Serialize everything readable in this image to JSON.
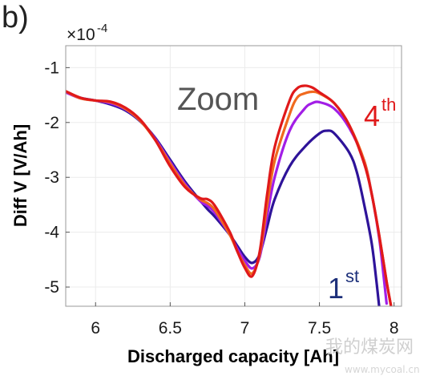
{
  "panel_label": "b)",
  "chart_data": {
    "type": "line",
    "title": "",
    "xlabel": "Discharged capacity [Ah]",
    "ylabel": "Diff V [V/Ah]",
    "y_exponent_label": "×10",
    "y_exponent_power": "-4",
    "xlim": [
      5.8,
      8.05
    ],
    "ylim": [
      -5.35,
      -0.6
    ],
    "x_ticks": [
      6,
      6.5,
      7,
      7.5,
      8
    ],
    "x_tick_labels": [
      "6",
      "6.5",
      "7",
      "7.5",
      "8"
    ],
    "y_ticks": [
      -1,
      -2,
      -3,
      -4,
      -5
    ],
    "y_tick_labels": [
      "-1",
      "-2",
      "-3",
      "-4",
      "-5"
    ],
    "grid": true,
    "annotation": "Zoom",
    "first_label": {
      "base": "1",
      "sup": "st",
      "color": "#1c2f7a"
    },
    "fourth_label": {
      "base": "4",
      "sup": "th",
      "color": "#e0191a"
    },
    "series": [
      {
        "color": "#2e1399",
        "points": [
          [
            5.8,
            -1.45
          ],
          [
            5.9,
            -1.55
          ],
          [
            6.0,
            -1.6
          ],
          [
            6.1,
            -1.67
          ],
          [
            6.2,
            -1.78
          ],
          [
            6.3,
            -1.98
          ],
          [
            6.4,
            -2.28
          ],
          [
            6.5,
            -2.68
          ],
          [
            6.6,
            -3.08
          ],
          [
            6.7,
            -3.42
          ],
          [
            6.75,
            -3.58
          ],
          [
            6.8,
            -3.72
          ],
          [
            6.9,
            -4.05
          ],
          [
            6.95,
            -4.25
          ],
          [
            7.0,
            -4.45
          ],
          [
            7.05,
            -4.56
          ],
          [
            7.1,
            -4.4
          ],
          [
            7.15,
            -3.9
          ],
          [
            7.2,
            -3.4
          ],
          [
            7.3,
            -2.8
          ],
          [
            7.4,
            -2.45
          ],
          [
            7.5,
            -2.2
          ],
          [
            7.55,
            -2.15
          ],
          [
            7.6,
            -2.2
          ],
          [
            7.7,
            -2.55
          ],
          [
            7.75,
            -2.9
          ],
          [
            7.8,
            -3.5
          ],
          [
            7.85,
            -4.2
          ],
          [
            7.88,
            -4.85
          ],
          [
            7.9,
            -5.35
          ]
        ]
      },
      {
        "color": "#a21ee6",
        "points": [
          [
            5.8,
            -1.45
          ],
          [
            5.9,
            -1.56
          ],
          [
            6.0,
            -1.6
          ],
          [
            6.1,
            -1.65
          ],
          [
            6.2,
            -1.76
          ],
          [
            6.3,
            -1.97
          ],
          [
            6.4,
            -2.3
          ],
          [
            6.5,
            -2.72
          ],
          [
            6.6,
            -3.12
          ],
          [
            6.7,
            -3.43
          ],
          [
            6.75,
            -3.52
          ],
          [
            6.8,
            -3.65
          ],
          [
            6.9,
            -4.05
          ],
          [
            6.95,
            -4.3
          ],
          [
            7.0,
            -4.52
          ],
          [
            7.05,
            -4.66
          ],
          [
            7.1,
            -4.45
          ],
          [
            7.15,
            -3.7
          ],
          [
            7.2,
            -3.0
          ],
          [
            7.3,
            -2.15
          ],
          [
            7.4,
            -1.75
          ],
          [
            7.45,
            -1.65
          ],
          [
            7.5,
            -1.63
          ],
          [
            7.6,
            -1.75
          ],
          [
            7.7,
            -2.1
          ],
          [
            7.8,
            -2.7
          ],
          [
            7.85,
            -3.3
          ],
          [
            7.9,
            -4.1
          ],
          [
            7.93,
            -4.8
          ],
          [
            7.95,
            -5.3
          ]
        ]
      },
      {
        "color": "#f06a1f",
        "points": [
          [
            5.8,
            -1.43
          ],
          [
            5.9,
            -1.56
          ],
          [
            6.0,
            -1.6
          ],
          [
            6.1,
            -1.63
          ],
          [
            6.2,
            -1.75
          ],
          [
            6.3,
            -1.97
          ],
          [
            6.4,
            -2.32
          ],
          [
            6.5,
            -2.75
          ],
          [
            6.6,
            -3.15
          ],
          [
            6.7,
            -3.4
          ],
          [
            6.75,
            -3.47
          ],
          [
            6.8,
            -3.6
          ],
          [
            6.9,
            -4.05
          ],
          [
            6.95,
            -4.35
          ],
          [
            7.0,
            -4.6
          ],
          [
            7.05,
            -4.75
          ],
          [
            7.1,
            -4.4
          ],
          [
            7.15,
            -3.5
          ],
          [
            7.2,
            -2.7
          ],
          [
            7.3,
            -1.85
          ],
          [
            7.35,
            -1.55
          ],
          [
            7.4,
            -1.47
          ],
          [
            7.45,
            -1.44
          ],
          [
            7.5,
            -1.47
          ],
          [
            7.6,
            -1.65
          ],
          [
            7.7,
            -2.05
          ],
          [
            7.8,
            -2.7
          ],
          [
            7.85,
            -3.3
          ],
          [
            7.9,
            -4.05
          ],
          [
            7.95,
            -4.9
          ],
          [
            7.98,
            -5.35
          ]
        ]
      },
      {
        "color": "#e0191a",
        "points": [
          [
            5.8,
            -1.43
          ],
          [
            5.9,
            -1.55
          ],
          [
            6.0,
            -1.6
          ],
          [
            6.1,
            -1.62
          ],
          [
            6.2,
            -1.73
          ],
          [
            6.3,
            -1.95
          ],
          [
            6.4,
            -2.32
          ],
          [
            6.5,
            -2.8
          ],
          [
            6.6,
            -3.18
          ],
          [
            6.7,
            -3.38
          ],
          [
            6.75,
            -3.4
          ],
          [
            6.8,
            -3.52
          ],
          [
            6.9,
            -4.0
          ],
          [
            6.95,
            -4.35
          ],
          [
            7.0,
            -4.65
          ],
          [
            7.05,
            -4.8
          ],
          [
            7.1,
            -4.35
          ],
          [
            7.15,
            -3.3
          ],
          [
            7.2,
            -2.45
          ],
          [
            7.3,
            -1.6
          ],
          [
            7.35,
            -1.38
          ],
          [
            7.4,
            -1.33
          ],
          [
            7.45,
            -1.36
          ],
          [
            7.5,
            -1.45
          ],
          [
            7.6,
            -1.65
          ],
          [
            7.7,
            -2.05
          ],
          [
            7.8,
            -2.75
          ],
          [
            7.85,
            -3.3
          ],
          [
            7.9,
            -4.05
          ],
          [
            7.95,
            -4.9
          ],
          [
            7.98,
            -5.35
          ]
        ]
      }
    ]
  },
  "watermark": {
    "text": "我的煤炭网",
    "url": "www.mycoal.cn"
  }
}
